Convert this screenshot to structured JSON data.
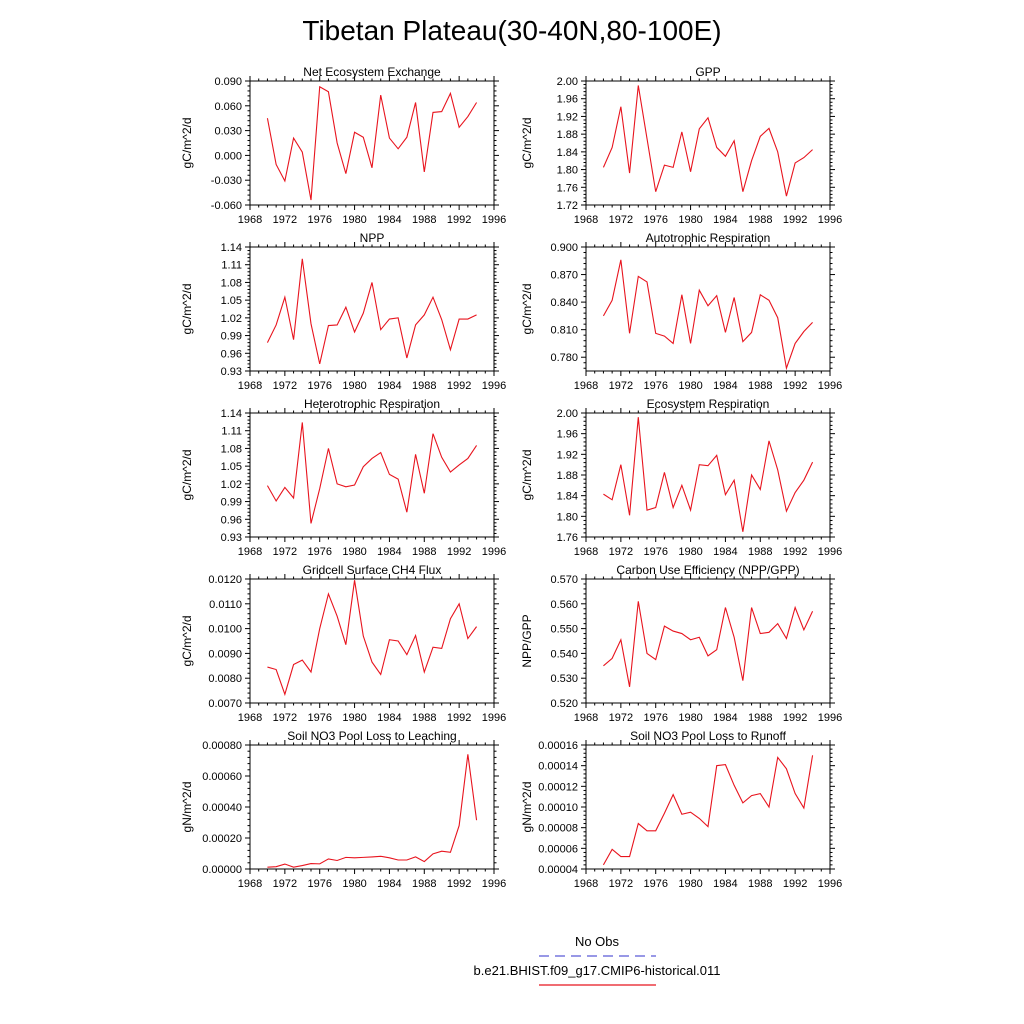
{
  "figure_title": "Tibetan Plateau(30-40N,80-100E)",
  "legend": [
    {
      "label": "No Obs",
      "color": "#5b5bd6",
      "dash": true
    },
    {
      "label": "b.e21.BHIST.f09_g17.CMIP6-historical.011",
      "color": "#e8141e",
      "dash": false
    }
  ],
  "chart_data": [
    {
      "type": "line",
      "title": "Net Ecosystem Exchange",
      "ylabel": "gC/m^2/d",
      "xlim": [
        1968,
        1996
      ],
      "xticks": [
        1968,
        1972,
        1976,
        1980,
        1984,
        1988,
        1992,
        1996
      ],
      "ylim": [
        -0.06,
        0.09
      ],
      "yticks": [
        -0.06,
        -0.03,
        0.0,
        0.03,
        0.06,
        0.09
      ],
      "ytick_labels": [
        "-0.060",
        "-0.030",
        "0.000",
        "0.030",
        "0.060",
        "0.090"
      ],
      "x": [
        1970,
        1971,
        1972,
        1973,
        1974,
        1975,
        1976,
        1977,
        1978,
        1979,
        1980,
        1981,
        1982,
        1983,
        1984,
        1985,
        1986,
        1987,
        1988,
        1989,
        1990,
        1991,
        1992,
        1993,
        1994
      ],
      "series": [
        {
          "name": "b.e21.BHIST.f09_g17.CMIP6-historical.011",
          "values": [
            0.045,
            -0.011,
            -0.031,
            0.021,
            0.004,
            -0.054,
            0.083,
            0.077,
            0.015,
            -0.022,
            0.028,
            0.022,
            -0.015,
            0.073,
            0.021,
            0.008,
            0.022,
            0.064,
            -0.02,
            0.052,
            0.053,
            0.075,
            0.034,
            0.047,
            0.064
          ]
        }
      ]
    },
    {
      "type": "line",
      "title": "GPP",
      "ylabel": "gC/m^2/d",
      "xlim": [
        1968,
        1996
      ],
      "xticks": [
        1968,
        1972,
        1976,
        1980,
        1984,
        1988,
        1992,
        1996
      ],
      "ylim": [
        1.72,
        2.0
      ],
      "yticks": [
        1.72,
        1.76,
        1.8,
        1.84,
        1.88,
        1.92,
        1.96,
        2.0
      ],
      "ytick_labels": [
        "1.72",
        "1.76",
        "1.80",
        "1.84",
        "1.88",
        "1.92",
        "1.96",
        "2.00"
      ],
      "x": [
        1970,
        1971,
        1972,
        1973,
        1974,
        1975,
        1976,
        1977,
        1978,
        1979,
        1980,
        1981,
        1982,
        1983,
        1984,
        1985,
        1986,
        1987,
        1988,
        1989,
        1990,
        1991,
        1992,
        1993,
        1994
      ],
      "series": [
        {
          "name": "b.e21.BHIST.f09_g17.CMIP6-historical.011",
          "values": [
            1.805,
            1.85,
            1.942,
            1.792,
            1.99,
            1.87,
            1.75,
            1.81,
            1.805,
            1.885,
            1.795,
            1.892,
            1.917,
            1.85,
            1.83,
            1.865,
            1.75,
            1.82,
            1.875,
            1.893,
            1.84,
            1.74,
            1.815,
            1.827,
            1.845
          ]
        }
      ]
    },
    {
      "type": "line",
      "title": "NPP",
      "ylabel": "gC/m^2/d",
      "xlim": [
        1968,
        1996
      ],
      "xticks": [
        1968,
        1972,
        1976,
        1980,
        1984,
        1988,
        1992,
        1996
      ],
      "ylim": [
        0.93,
        1.14
      ],
      "yticks": [
        0.93,
        0.96,
        0.99,
        1.02,
        1.05,
        1.08,
        1.11,
        1.14
      ],
      "ytick_labels": [
        "0.93",
        "0.96",
        "0.99",
        "1.02",
        "1.05",
        "1.08",
        "1.11",
        "1.14"
      ],
      "x": [
        1970,
        1971,
        1972,
        1973,
        1974,
        1975,
        1976,
        1977,
        1978,
        1979,
        1980,
        1981,
        1982,
        1983,
        1984,
        1985,
        1986,
        1987,
        1988,
        1989,
        1990,
        1991,
        1992,
        1993,
        1994
      ],
      "series": [
        {
          "name": "b.e21.BHIST.f09_g17.CMIP6-historical.011",
          "values": [
            0.978,
            1.008,
            1.055,
            0.983,
            1.12,
            1.01,
            0.942,
            1.007,
            1.008,
            1.038,
            0.996,
            1.028,
            1.08,
            1.0,
            1.018,
            1.02,
            0.952,
            1.008,
            1.025,
            1.055,
            1.017,
            0.966,
            1.018,
            1.018,
            1.025
          ]
        }
      ]
    },
    {
      "type": "line",
      "title": "Autotrophic Respiration",
      "ylabel": "gC/m^2/d",
      "xlim": [
        1968,
        1996
      ],
      "xticks": [
        1968,
        1972,
        1976,
        1980,
        1984,
        1988,
        1992,
        1996
      ],
      "ylim": [
        0.765,
        0.9
      ],
      "yticks": [
        0.78,
        0.81,
        0.84,
        0.87,
        0.9
      ],
      "ytick_labels": [
        "0.780",
        "0.810",
        "0.840",
        "0.870",
        "0.900"
      ],
      "x": [
        1970,
        1971,
        1972,
        1973,
        1974,
        1975,
        1976,
        1977,
        1978,
        1979,
        1980,
        1981,
        1982,
        1983,
        1984,
        1985,
        1986,
        1987,
        1988,
        1989,
        1990,
        1991,
        1992,
        1993,
        1994
      ],
      "series": [
        {
          "name": "b.e21.BHIST.f09_g17.CMIP6-historical.011",
          "values": [
            0.825,
            0.842,
            0.886,
            0.806,
            0.868,
            0.862,
            0.806,
            0.803,
            0.795,
            0.848,
            0.795,
            0.853,
            0.836,
            0.847,
            0.807,
            0.845,
            0.797,
            0.807,
            0.848,
            0.842,
            0.823,
            0.768,
            0.795,
            0.808,
            0.818
          ]
        }
      ]
    },
    {
      "type": "line",
      "title": "Heterotrophic Respiration",
      "ylabel": "gC/m^2/d",
      "xlim": [
        1968,
        1996
      ],
      "xticks": [
        1968,
        1972,
        1976,
        1980,
        1984,
        1988,
        1992,
        1996
      ],
      "ylim": [
        0.93,
        1.14
      ],
      "yticks": [
        0.93,
        0.96,
        0.99,
        1.02,
        1.05,
        1.08,
        1.11,
        1.14
      ],
      "ytick_labels": [
        "0.93",
        "0.96",
        "0.99",
        "1.02",
        "1.05",
        "1.08",
        "1.11",
        "1.14"
      ],
      "x": [
        1970,
        1971,
        1972,
        1973,
        1974,
        1975,
        1976,
        1977,
        1978,
        1979,
        1980,
        1981,
        1982,
        1983,
        1984,
        1985,
        1986,
        1987,
        1988,
        1989,
        1990,
        1991,
        1992,
        1993,
        1994
      ],
      "series": [
        {
          "name": "b.e21.BHIST.f09_g17.CMIP6-historical.011",
          "values": [
            1.017,
            0.991,
            1.014,
            0.996,
            1.124,
            0.953,
            1.012,
            1.08,
            1.02,
            1.015,
            1.018,
            1.049,
            1.063,
            1.073,
            1.036,
            1.028,
            0.972,
            1.07,
            1.004,
            1.105,
            1.065,
            1.04,
            1.052,
            1.063,
            1.085
          ]
        }
      ]
    },
    {
      "type": "line",
      "title": "Ecosystem Respiration",
      "ylabel": "gC/m^2/d",
      "xlim": [
        1968,
        1996
      ],
      "xticks": [
        1968,
        1972,
        1976,
        1980,
        1984,
        1988,
        1992,
        1996
      ],
      "ylim": [
        1.76,
        2.0
      ],
      "yticks": [
        1.76,
        1.8,
        1.84,
        1.88,
        1.92,
        1.96,
        2.0
      ],
      "ytick_labels": [
        "1.76",
        "1.80",
        "1.84",
        "1.88",
        "1.92",
        "1.96",
        "2.00"
      ],
      "x": [
        1970,
        1971,
        1972,
        1973,
        1974,
        1975,
        1976,
        1977,
        1978,
        1979,
        1980,
        1981,
        1982,
        1983,
        1984,
        1985,
        1986,
        1987,
        1988,
        1989,
        1990,
        1991,
        1992,
        1993,
        1994
      ],
      "series": [
        {
          "name": "b.e21.BHIST.f09_g17.CMIP6-historical.011",
          "values": [
            1.843,
            1.832,
            1.9,
            1.802,
            1.992,
            1.812,
            1.817,
            1.885,
            1.817,
            1.86,
            1.812,
            1.9,
            1.898,
            1.918,
            1.842,
            1.87,
            1.77,
            1.88,
            1.852,
            1.946,
            1.89,
            1.81,
            1.846,
            1.87,
            1.905
          ]
        }
      ]
    },
    {
      "type": "line",
      "title": "Gridcell Surface CH4 Flux",
      "ylabel": "gC/m^2/d",
      "xlim": [
        1968,
        1996
      ],
      "xticks": [
        1968,
        1972,
        1976,
        1980,
        1984,
        1988,
        1992,
        1996
      ],
      "ylim": [
        0.007,
        0.012
      ],
      "yticks": [
        0.007,
        0.008,
        0.009,
        0.01,
        0.011,
        0.012
      ],
      "ytick_labels": [
        "0.0070",
        "0.0080",
        "0.0090",
        "0.0100",
        "0.0110",
        "0.0120"
      ],
      "x": [
        1970,
        1971,
        1972,
        1973,
        1974,
        1975,
        1976,
        1977,
        1978,
        1979,
        1980,
        1981,
        1982,
        1983,
        1984,
        1985,
        1986,
        1987,
        1988,
        1989,
        1990,
        1991,
        1992,
        1993,
        1994
      ],
      "series": [
        {
          "name": "b.e21.BHIST.f09_g17.CMIP6-historical.011",
          "values": [
            0.00845,
            0.00835,
            0.00735,
            0.00855,
            0.00873,
            0.00825,
            0.01,
            0.0114,
            0.0105,
            0.00935,
            0.01195,
            0.0097,
            0.00865,
            0.00815,
            0.00955,
            0.0095,
            0.00895,
            0.00972,
            0.00825,
            0.00925,
            0.0092,
            0.0104,
            0.011,
            0.0096,
            0.01008
          ]
        }
      ]
    },
    {
      "type": "line",
      "title": "Carbon Use Efficiency (NPP/GPP)",
      "ylabel": "NPP/GPP",
      "xlim": [
        1968,
        1996
      ],
      "xticks": [
        1968,
        1972,
        1976,
        1980,
        1984,
        1988,
        1992,
        1996
      ],
      "ylim": [
        0.52,
        0.57
      ],
      "yticks": [
        0.52,
        0.53,
        0.54,
        0.55,
        0.56,
        0.57
      ],
      "ytick_labels": [
        "0.520",
        "0.530",
        "0.540",
        "0.550",
        "0.560",
        "0.570"
      ],
      "x": [
        1970,
        1971,
        1972,
        1973,
        1974,
        1975,
        1976,
        1977,
        1978,
        1979,
        1980,
        1981,
        1982,
        1983,
        1984,
        1985,
        1986,
        1987,
        1988,
        1989,
        1990,
        1991,
        1992,
        1993,
        1994
      ],
      "series": [
        {
          "name": "b.e21.BHIST.f09_g17.CMIP6-historical.011",
          "values": [
            0.535,
            0.538,
            0.5455,
            0.5265,
            0.561,
            0.54,
            0.5375,
            0.551,
            0.549,
            0.548,
            0.5455,
            0.5465,
            0.539,
            0.5415,
            0.5585,
            0.5465,
            0.529,
            0.5585,
            0.548,
            0.5485,
            0.552,
            0.546,
            0.5585,
            0.5495,
            0.557
          ]
        }
      ]
    },
    {
      "type": "line",
      "title": "Soil NO3 Pool Loss to Leaching",
      "ylabel": "gN/m^2/d",
      "xlim": [
        1968,
        1996
      ],
      "xticks": [
        1968,
        1972,
        1976,
        1980,
        1984,
        1988,
        1992,
        1996
      ],
      "ylim": [
        0.0,
        0.0008
      ],
      "yticks": [
        0.0,
        0.0002,
        0.0004,
        0.0006,
        0.0008
      ],
      "ytick_labels": [
        "0.00000",
        "0.00020",
        "0.00040",
        "0.00060",
        "0.00080"
      ],
      "x": [
        1970,
        1971,
        1972,
        1973,
        1974,
        1975,
        1976,
        1977,
        1978,
        1979,
        1980,
        1981,
        1982,
        1983,
        1984,
        1985,
        1986,
        1987,
        1988,
        1989,
        1990,
        1991,
        1992,
        1993,
        1994
      ],
      "series": [
        {
          "name": "b.e21.BHIST.f09_g17.CMIP6-historical.011",
          "values": [
            1.2e-05,
            1.5e-05,
            3.2e-05,
            1.2e-05,
            2.2e-05,
            3.5e-05,
            3.3e-05,
            6.5e-05,
            5.5e-05,
            7.5e-05,
            7.2e-05,
            7.5e-05,
            7.8e-05,
            8.2e-05,
            7.2e-05,
            5.8e-05,
            5.8e-05,
            7.8e-05,
            4.8e-05,
            9.8e-05,
            0.000115,
            0.000108,
            0.00028,
            0.00074,
            0.000315
          ]
        }
      ]
    },
    {
      "type": "line",
      "title": "Soil NO3 Pool Loss to Runoff",
      "ylabel": "gN/m^2/d",
      "xlim": [
        1968,
        1996
      ],
      "xticks": [
        1968,
        1972,
        1976,
        1980,
        1984,
        1988,
        1992,
        1996
      ],
      "ylim": [
        4e-05,
        0.00016
      ],
      "yticks": [
        4e-05,
        6e-05,
        8e-05,
        0.0001,
        0.00012,
        0.00014,
        0.00016
      ],
      "ytick_labels": [
        "0.00004",
        "0.00006",
        "0.00008",
        "0.00010",
        "0.00012",
        "0.00014",
        "0.00016"
      ],
      "x": [
        1970,
        1971,
        1972,
        1973,
        1974,
        1975,
        1976,
        1977,
        1978,
        1979,
        1980,
        1981,
        1982,
        1983,
        1984,
        1985,
        1986,
        1987,
        1988,
        1989,
        1990,
        1991,
        1992,
        1993,
        1994
      ],
      "series": [
        {
          "name": "b.e21.BHIST.f09_g17.CMIP6-historical.011",
          "values": [
            4.4e-05,
            5.9e-05,
            5.2e-05,
            5.2e-05,
            8.4e-05,
            7.7e-05,
            7.7e-05,
            9.4e-05,
            0.000112,
            9.3e-05,
            9.5e-05,
            8.9e-05,
            8.1e-05,
            0.00014,
            0.000141,
            0.000121,
            0.000104,
            0.000111,
            0.000113,
            0.0001,
            0.000148,
            0.000137,
            0.000113,
            9.9e-05,
            0.00015
          ]
        }
      ]
    }
  ]
}
